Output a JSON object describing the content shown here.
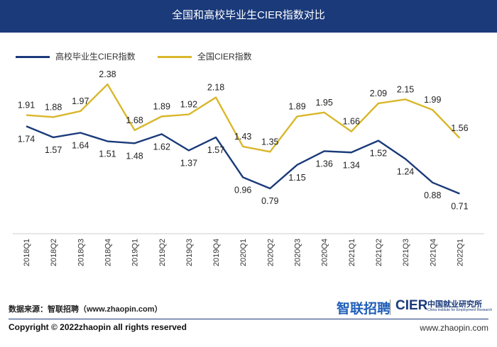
{
  "header": {
    "title": "全国和高校毕业生CIER指数对比"
  },
  "chart_data": {
    "type": "line",
    "title": "全国和高校毕业生CIER指数对比",
    "categories": [
      "2018Q1",
      "2018Q2",
      "2018Q3",
      "2018Q4",
      "2019Q1",
      "2019Q2",
      "2019Q3",
      "2019Q4",
      "2020Q1",
      "2020Q2",
      "2020Q3",
      "2020Q4",
      "2021Q1",
      "2021Q2",
      "2021Q3",
      "2021Q4",
      "2022Q1"
    ],
    "series": [
      {
        "name": "高校毕业生CIER指数",
        "color": "#1a3a7a",
        "values": [
          1.74,
          1.57,
          1.64,
          1.51,
          1.48,
          1.62,
          1.37,
          1.57,
          0.96,
          0.79,
          1.15,
          1.36,
          1.34,
          1.52,
          1.24,
          0.88,
          0.71
        ]
      },
      {
        "name": "全国CIER指数",
        "color": "#d9b72b",
        "values": [
          1.91,
          1.88,
          1.97,
          2.38,
          1.68,
          1.89,
          1.92,
          2.18,
          1.43,
          1.35,
          1.89,
          1.95,
          1.66,
          2.09,
          2.15,
          1.99,
          1.56
        ]
      }
    ],
    "legend_position": "top-left",
    "grid": false
  },
  "footer": {
    "source": "数据来源：智联招聘（www.zhaopin.com）",
    "logo_zhilian": "智联招聘",
    "logo_cier": "CIER",
    "logo_cier_cn": "中国就业研究所",
    "logo_cier_en": "China Institute for Employment Research",
    "copyright": "Copyright ©  2022zhaopin all rights reserved",
    "site": "www.zhaopin.com"
  }
}
